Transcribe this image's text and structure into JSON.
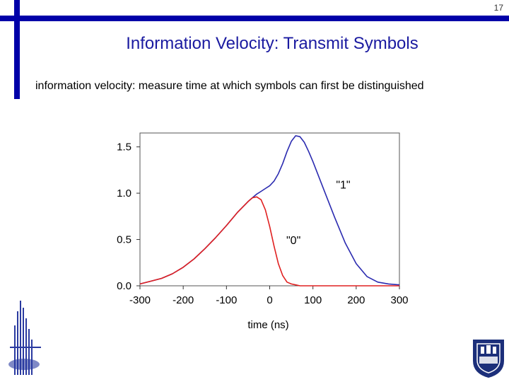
{
  "slide": {
    "page_number": "17",
    "title": "Information Velocity: Transmit Symbols",
    "subtitle": "information velocity:  measure time at which symbols can first be distinguished",
    "accent_color": "#0000a8",
    "title_color": "#1a1aa0"
  },
  "chart_data": {
    "type": "line",
    "title": "",
    "xlabel": "time (ns)",
    "ylabel": "",
    "xlim": [
      -300,
      300
    ],
    "ylim": [
      0,
      1.65
    ],
    "xticks": [
      "-300",
      "-200",
      "-100",
      "0",
      "100",
      "200",
      "300"
    ],
    "yticks": [
      "0.0",
      "0.5",
      "1.0",
      "1.5"
    ],
    "series": [
      {
        "name": "\"1\"",
        "color": "#2b2bb0",
        "x": [
          -300,
          -275,
          -250,
          -225,
          -200,
          -175,
          -150,
          -125,
          -100,
          -75,
          -50,
          -40,
          -30,
          -20,
          -10,
          0,
          10,
          20,
          30,
          40,
          50,
          60,
          70,
          80,
          90,
          100,
          125,
          150,
          175,
          200,
          225,
          250,
          275,
          300
        ],
        "y": [
          0.02,
          0.05,
          0.08,
          0.13,
          0.2,
          0.29,
          0.4,
          0.52,
          0.65,
          0.79,
          0.91,
          0.95,
          0.99,
          1.02,
          1.05,
          1.08,
          1.13,
          1.21,
          1.32,
          1.45,
          1.56,
          1.62,
          1.61,
          1.55,
          1.45,
          1.34,
          1.04,
          0.74,
          0.46,
          0.24,
          0.1,
          0.04,
          0.02,
          0.01
        ]
      },
      {
        "name": "\"0\"",
        "color": "#e02020",
        "x": [
          -300,
          -275,
          -250,
          -225,
          -200,
          -175,
          -150,
          -125,
          -100,
          -75,
          -50,
          -40,
          -30,
          -20,
          -10,
          0,
          10,
          20,
          30,
          40,
          50,
          60,
          70,
          80,
          100,
          150,
          200,
          250,
          300
        ],
        "y": [
          0.02,
          0.05,
          0.08,
          0.13,
          0.2,
          0.29,
          0.4,
          0.52,
          0.65,
          0.79,
          0.91,
          0.95,
          0.96,
          0.93,
          0.82,
          0.64,
          0.43,
          0.24,
          0.11,
          0.04,
          0.02,
          0.01,
          0.0,
          0.0,
          0.0,
          0.0,
          0.0,
          0.0,
          0.0
        ]
      }
    ],
    "annotations": [
      {
        "text": "\"1\"",
        "x": 170,
        "y": 1.05
      },
      {
        "text": "\"0\"",
        "x": 55,
        "y": 0.45
      }
    ],
    "grid": false
  }
}
